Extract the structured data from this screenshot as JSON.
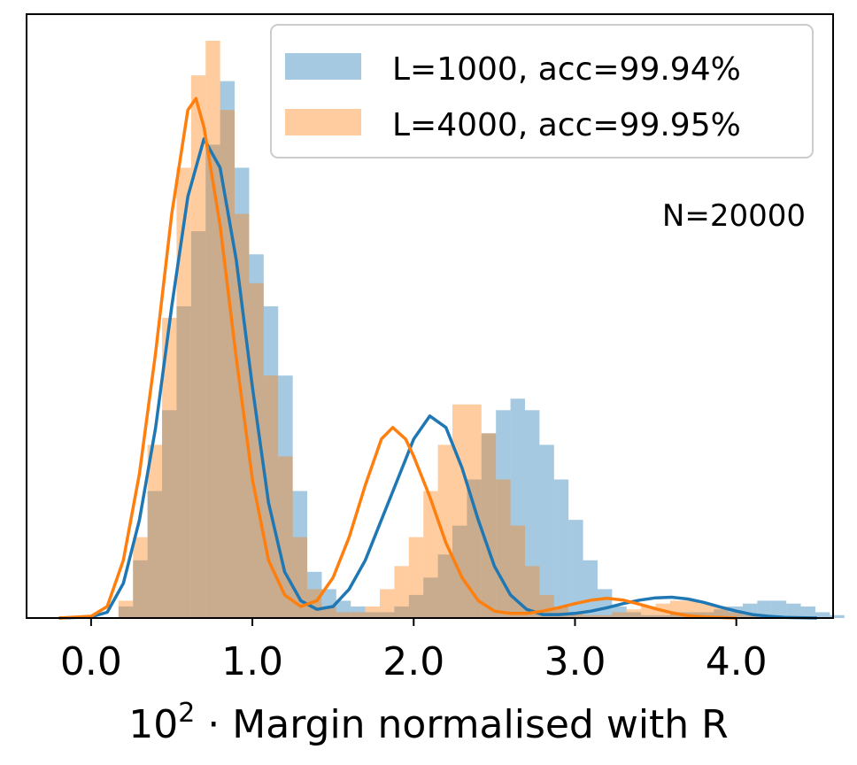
{
  "chart_data": {
    "type": "histogram",
    "xlabel_prefix": "10",
    "xlabel_exponent": "2",
    "xlabel_suffix": " · Margin normalised with R",
    "xlim": [
      -0.4,
      4.6
    ],
    "ylim": [
      0,
      1.0
    ],
    "xticks": [
      0.0,
      1.0,
      2.0,
      3.0,
      4.0
    ],
    "xtick_labels": [
      "0.0",
      "1.0",
      "2.0",
      "3.0",
      "4.0"
    ],
    "yticks_visible": false,
    "annotation": "N=20000",
    "bin_width": 0.09,
    "series": [
      {
        "name": "L=1000",
        "label": "L=1000, acc=99.94%",
        "color": "#1f77b4",
        "fill": "#9dc3e0",
        "bins_start": 0.17,
        "bin_heights": [
          0.02,
          0.1,
          0.22,
          0.36,
          0.54,
          0.67,
          0.82,
          0.93,
          0.78,
          0.63,
          0.54,
          0.42,
          0.22,
          0.08,
          0.05,
          0.03,
          0.02,
          0.01,
          0.01,
          0.02,
          0.04,
          0.07,
          0.11,
          0.16,
          0.24,
          0.32,
          0.36,
          0.38,
          0.36,
          0.3,
          0.24,
          0.17,
          0.1,
          0.05,
          0.02,
          0.01,
          0.005,
          0.005,
          0.01,
          0.01,
          0.01,
          0.015,
          0.02,
          0.025,
          0.03,
          0.03,
          0.025,
          0.02,
          0.01,
          0.005,
          0.0
        ],
        "kde": [
          [
            -0.2,
            0.0
          ],
          [
            0.0,
            0.002
          ],
          [
            0.1,
            0.01
          ],
          [
            0.2,
            0.06
          ],
          [
            0.3,
            0.17
          ],
          [
            0.4,
            0.33
          ],
          [
            0.5,
            0.54
          ],
          [
            0.6,
            0.73
          ],
          [
            0.7,
            0.83
          ],
          [
            0.8,
            0.78
          ],
          [
            0.9,
            0.62
          ],
          [
            1.0,
            0.4
          ],
          [
            1.1,
            0.2
          ],
          [
            1.2,
            0.08
          ],
          [
            1.3,
            0.03
          ],
          [
            1.4,
            0.015
          ],
          [
            1.5,
            0.02
          ],
          [
            1.6,
            0.05
          ],
          [
            1.7,
            0.1
          ],
          [
            1.8,
            0.17
          ],
          [
            1.9,
            0.24
          ],
          [
            2.0,
            0.31
          ],
          [
            2.1,
            0.35
          ],
          [
            2.2,
            0.33
          ],
          [
            2.3,
            0.26
          ],
          [
            2.4,
            0.17
          ],
          [
            2.5,
            0.09
          ],
          [
            2.6,
            0.04
          ],
          [
            2.7,
            0.015
          ],
          [
            2.8,
            0.006
          ],
          [
            2.9,
            0.006
          ],
          [
            3.0,
            0.008
          ],
          [
            3.1,
            0.012
          ],
          [
            3.2,
            0.018
          ],
          [
            3.3,
            0.025
          ],
          [
            3.4,
            0.031
          ],
          [
            3.5,
            0.035
          ],
          [
            3.6,
            0.036
          ],
          [
            3.7,
            0.033
          ],
          [
            3.8,
            0.027
          ],
          [
            3.9,
            0.019
          ],
          [
            4.0,
            0.012
          ],
          [
            4.1,
            0.006
          ],
          [
            4.2,
            0.003
          ],
          [
            4.3,
            0.001
          ],
          [
            4.5,
            0.0
          ]
        ]
      },
      {
        "name": "L=4000",
        "label": "L=4000, acc=99.95%",
        "color": "#ff7f0e",
        "fill": "#ffc796",
        "bins_start": 0.17,
        "bin_heights": [
          0.03,
          0.14,
          0.3,
          0.52,
          0.78,
          0.94,
          1.0,
          0.88,
          0.7,
          0.58,
          0.42,
          0.28,
          0.14,
          0.05,
          0.02,
          0.01,
          0.01,
          0.02,
          0.05,
          0.09,
          0.14,
          0.22,
          0.3,
          0.37,
          0.37,
          0.32,
          0.24,
          0.16,
          0.09,
          0.04,
          0.02,
          0.01,
          0.005,
          0.005,
          0.01,
          0.015,
          0.02,
          0.025,
          0.03,
          0.03,
          0.025,
          0.02,
          0.01,
          0.005,
          0.0
        ],
        "kde": [
          [
            -0.2,
            0.0
          ],
          [
            0.0,
            0.003
          ],
          [
            0.1,
            0.02
          ],
          [
            0.2,
            0.1
          ],
          [
            0.3,
            0.25
          ],
          [
            0.4,
            0.46
          ],
          [
            0.5,
            0.7
          ],
          [
            0.6,
            0.88
          ],
          [
            0.65,
            0.9
          ],
          [
            0.7,
            0.85
          ],
          [
            0.8,
            0.68
          ],
          [
            0.9,
            0.45
          ],
          [
            1.0,
            0.24
          ],
          [
            1.1,
            0.1
          ],
          [
            1.2,
            0.04
          ],
          [
            1.3,
            0.02
          ],
          [
            1.4,
            0.03
          ],
          [
            1.5,
            0.07
          ],
          [
            1.6,
            0.14
          ],
          [
            1.7,
            0.23
          ],
          [
            1.8,
            0.31
          ],
          [
            1.87,
            0.33
          ],
          [
            1.95,
            0.31
          ],
          [
            2.0,
            0.28
          ],
          [
            2.1,
            0.21
          ],
          [
            2.2,
            0.13
          ],
          [
            2.3,
            0.07
          ],
          [
            2.4,
            0.03
          ],
          [
            2.5,
            0.012
          ],
          [
            2.6,
            0.008
          ],
          [
            2.7,
            0.008
          ],
          [
            2.8,
            0.012
          ],
          [
            2.9,
            0.018
          ],
          [
            3.0,
            0.025
          ],
          [
            3.1,
            0.031
          ],
          [
            3.2,
            0.034
          ],
          [
            3.3,
            0.031
          ],
          [
            3.4,
            0.024
          ],
          [
            3.5,
            0.016
          ],
          [
            3.6,
            0.009
          ],
          [
            3.7,
            0.004
          ],
          [
            3.8,
            0.002
          ],
          [
            4.0,
            0.0
          ]
        ]
      }
    ],
    "legend_position": "top-right"
  }
}
